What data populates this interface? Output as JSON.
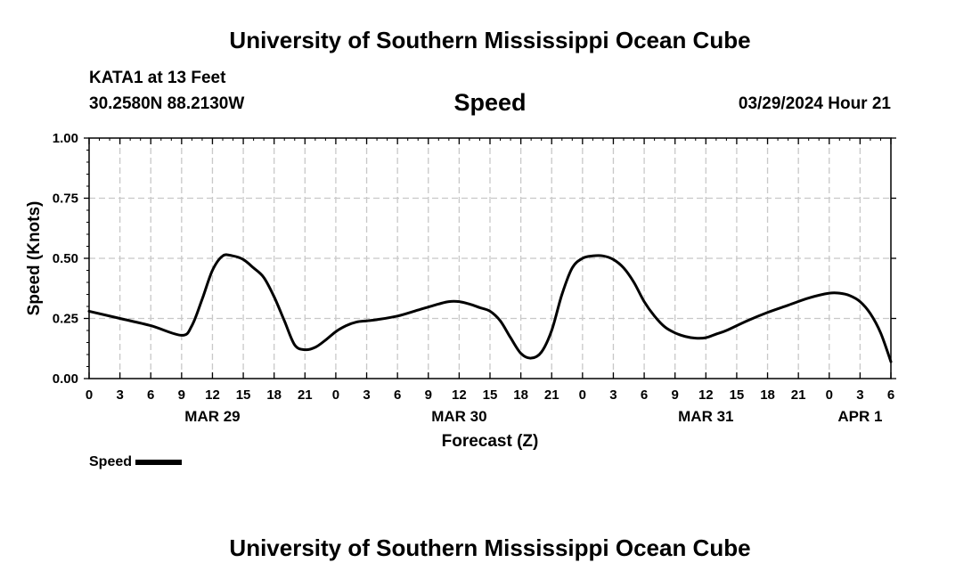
{
  "header": {
    "title": "University of Southern Mississippi Ocean Cube",
    "station": "KATA1 at 13 Feet",
    "coordinates": "30.2580N  88.2130W",
    "datetime": "03/29/2024 Hour 21"
  },
  "footer": {
    "title": "University of Southern Mississippi Ocean Cube"
  },
  "legend": {
    "label": "Speed"
  },
  "chart_data": {
    "type": "line",
    "title": "Speed",
    "xlabel": "Forecast (Z)",
    "ylabel": "Speed (Knots)",
    "xlim": [
      0,
      78
    ],
    "ylim": [
      0,
      1
    ],
    "grid": true,
    "yticks": [
      0,
      0.25,
      0.5,
      0.75,
      1.0
    ],
    "ytick_labels": [
      "0.00",
      "0.25",
      "0.50",
      "0.75",
      "1.00"
    ],
    "xtick_labels": [
      "0",
      "3",
      "6",
      "9",
      "12",
      "15",
      "18",
      "21",
      "0",
      "3",
      "6",
      "9",
      "12",
      "15",
      "18",
      "21",
      "0",
      "3",
      "6",
      "9",
      "12",
      "15",
      "18",
      "21",
      "0",
      "3",
      "6"
    ],
    "date_labels": [
      {
        "label": "MAR 29",
        "x": 12
      },
      {
        "label": "MAR 30",
        "x": 36
      },
      {
        "label": "MAR 31",
        "x": 60
      },
      {
        "label": "APR 1",
        "x": 75
      }
    ],
    "legend_position": "bottom-left",
    "series": [
      {
        "name": "Speed",
        "color": "#000000",
        "x": [
          0,
          3,
          6,
          9,
          10,
          11,
          12,
          13,
          14,
          15,
          16,
          17,
          18,
          19,
          20,
          21,
          22,
          23,
          24,
          25,
          26,
          27,
          28,
          30,
          32,
          34,
          35,
          36,
          37,
          38,
          39,
          40,
          41,
          42,
          43,
          44,
          45,
          46,
          47,
          48,
          49,
          50,
          51,
          52,
          53,
          54,
          55,
          56,
          57,
          58,
          59,
          60,
          61,
          62,
          64,
          66,
          68,
          70,
          72,
          73,
          74,
          75,
          76,
          77,
          78
        ],
        "values": [
          0.28,
          0.25,
          0.22,
          0.18,
          0.22,
          0.33,
          0.45,
          0.51,
          0.51,
          0.495,
          0.46,
          0.42,
          0.34,
          0.24,
          0.14,
          0.12,
          0.13,
          0.16,
          0.195,
          0.22,
          0.235,
          0.24,
          0.245,
          0.26,
          0.285,
          0.31,
          0.32,
          0.32,
          0.31,
          0.295,
          0.28,
          0.24,
          0.17,
          0.105,
          0.085,
          0.11,
          0.2,
          0.35,
          0.46,
          0.5,
          0.51,
          0.51,
          0.495,
          0.46,
          0.4,
          0.32,
          0.26,
          0.215,
          0.19,
          0.175,
          0.168,
          0.17,
          0.185,
          0.2,
          0.24,
          0.275,
          0.305,
          0.335,
          0.355,
          0.355,
          0.345,
          0.32,
          0.27,
          0.19,
          0.07
        ]
      }
    ]
  }
}
